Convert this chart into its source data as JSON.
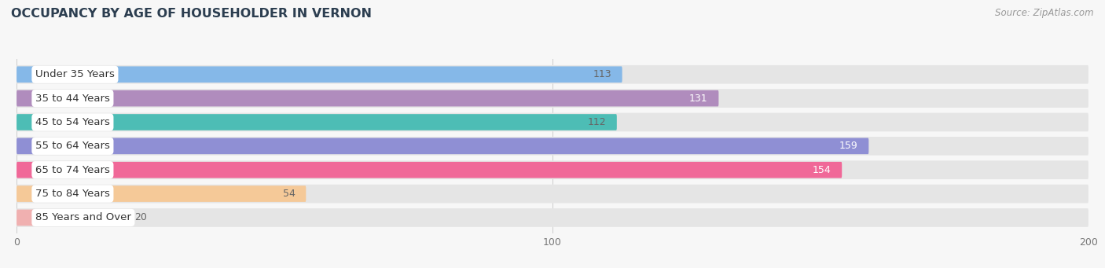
{
  "title": "OCCUPANCY BY AGE OF HOUSEHOLDER IN VERNON",
  "source": "Source: ZipAtlas.com",
  "categories": [
    "Under 35 Years",
    "35 to 44 Years",
    "45 to 54 Years",
    "55 to 64 Years",
    "65 to 74 Years",
    "75 to 84 Years",
    "85 Years and Over"
  ],
  "values": [
    113,
    131,
    112,
    159,
    154,
    54,
    20
  ],
  "bar_colors": [
    "#85b8e8",
    "#b08cbd",
    "#4dbdb5",
    "#8f8fd4",
    "#f06898",
    "#f5c998",
    "#f0b0b0"
  ],
  "value_label_colors": [
    "#666666",
    "#ffffff",
    "#666666",
    "#ffffff",
    "#ffffff",
    "#666666",
    "#666666"
  ],
  "xlim": [
    0,
    200
  ],
  "xticks": [
    0,
    100,
    200
  ],
  "background_color": "#f7f7f7",
  "bar_bg_color": "#e5e5e5",
  "row_bg_colors": [
    "#f0f0f0",
    "#e8e8e8"
  ],
  "title_fontsize": 11.5,
  "source_fontsize": 8.5,
  "value_fontsize": 9,
  "label_fontsize": 9.5,
  "tick_fontsize": 9
}
